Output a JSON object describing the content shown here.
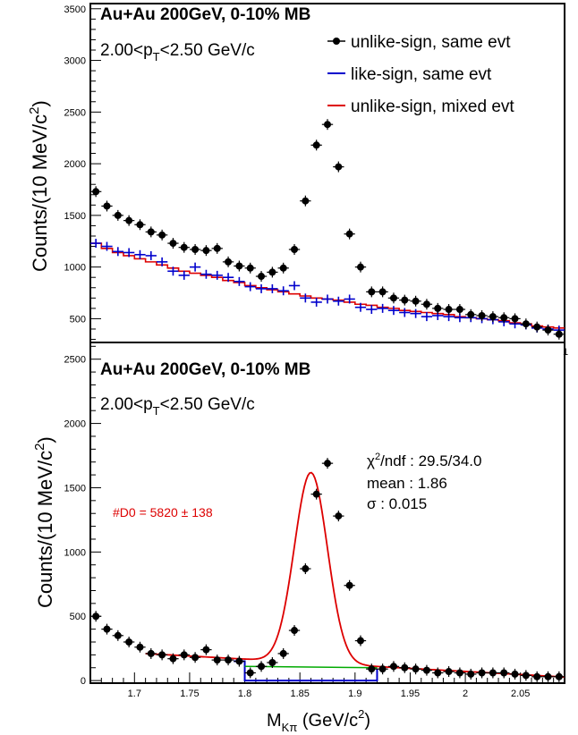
{
  "chart_data": [
    {
      "type": "scatter",
      "panel": "top",
      "title": "Au+Au 200GeV, 0-10% MB",
      "subtitle_main": "2.00<p",
      "subtitle_sub": "T",
      "subtitle_tail": "<2.50 GeV/c",
      "ylabel_main": "Counts/(10 MeV/c",
      "ylabel_sup": "2",
      "ylabel_tail": ")",
      "xlim": [
        1.66,
        2.09
      ],
      "ylim": [
        270,
        3550
      ],
      "yticks": [
        500,
        1000,
        1500,
        2000,
        2500,
        3000,
        3500
      ],
      "ytick_labels": [
        "500",
        "1000",
        "1500",
        "2000",
        "2500",
        "3000",
        "3500"
      ],
      "x_end_label": "1",
      "legend_position": "top-right",
      "legend": [
        {
          "label": "unlike-sign, same evt",
          "color": "#000000",
          "style": "marker"
        },
        {
          "label": "like-sign, same evt",
          "color": "#0000cc",
          "style": "line"
        },
        {
          "label": "unlike-sign, mixed evt",
          "color": "#dd0000",
          "style": "line"
        }
      ],
      "series": [
        {
          "name": "unlike-sign, same evt",
          "color": "#000000",
          "style": "points",
          "x": [
            1.665,
            1.675,
            1.685,
            1.695,
            1.705,
            1.715,
            1.725,
            1.735,
            1.745,
            1.755,
            1.765,
            1.775,
            1.785,
            1.795,
            1.805,
            1.815,
            1.825,
            1.835,
            1.845,
            1.855,
            1.865,
            1.875,
            1.885,
            1.895,
            1.905,
            1.915,
            1.925,
            1.935,
            1.945,
            1.955,
            1.965,
            1.975,
            1.985,
            1.995,
            2.005,
            2.015,
            2.025,
            2.035,
            2.045,
            2.055,
            2.065,
            2.075,
            2.085
          ],
          "y": [
            1730,
            1590,
            1500,
            1450,
            1410,
            1340,
            1310,
            1230,
            1190,
            1170,
            1160,
            1180,
            1050,
            1010,
            990,
            910,
            950,
            990,
            1170,
            1640,
            2180,
            2380,
            1970,
            1320,
            1000,
            760,
            760,
            700,
            680,
            670,
            640,
            600,
            590,
            590,
            540,
            530,
            520,
            510,
            500,
            450,
            420,
            390,
            350
          ]
        },
        {
          "name": "like-sign, same evt",
          "color": "#0000cc",
          "style": "crosses",
          "x": [
            1.665,
            1.675,
            1.685,
            1.695,
            1.705,
            1.715,
            1.725,
            1.735,
            1.745,
            1.755,
            1.765,
            1.775,
            1.785,
            1.795,
            1.805,
            1.815,
            1.825,
            1.835,
            1.845,
            1.855,
            1.865,
            1.875,
            1.885,
            1.895,
            1.905,
            1.915,
            1.925,
            1.935,
            1.945,
            1.955,
            1.965,
            1.975,
            1.985,
            1.995,
            2.005,
            2.015,
            2.025,
            2.035,
            2.045,
            2.055,
            2.065,
            2.075,
            2.085
          ],
          "y": [
            1230,
            1200,
            1150,
            1140,
            1120,
            1110,
            1050,
            960,
            920,
            1000,
            930,
            920,
            900,
            860,
            810,
            790,
            790,
            770,
            820,
            700,
            660,
            690,
            670,
            690,
            610,
            590,
            600,
            580,
            560,
            550,
            520,
            530,
            520,
            510,
            510,
            500,
            490,
            470,
            450,
            440,
            410,
            400,
            390
          ]
        },
        {
          "name": "unlike-sign, mixed evt",
          "color": "#dd0000",
          "style": "step",
          "x": [
            1.665,
            1.675,
            1.685,
            1.695,
            1.705,
            1.715,
            1.725,
            1.735,
            1.745,
            1.755,
            1.765,
            1.775,
            1.785,
            1.795,
            1.805,
            1.815,
            1.825,
            1.835,
            1.845,
            1.855,
            1.865,
            1.875,
            1.885,
            1.895,
            1.905,
            1.915,
            1.925,
            1.935,
            1.945,
            1.955,
            1.965,
            1.975,
            1.985,
            1.995,
            2.005,
            2.015,
            2.025,
            2.035,
            2.045,
            2.055,
            2.065,
            2.075,
            2.085
          ],
          "y": [
            1230,
            1180,
            1140,
            1110,
            1080,
            1050,
            1020,
            990,
            960,
            940,
            920,
            900,
            870,
            850,
            820,
            800,
            780,
            760,
            740,
            720,
            700,
            690,
            680,
            660,
            640,
            630,
            610,
            600,
            580,
            570,
            560,
            550,
            540,
            520,
            510,
            500,
            490,
            480,
            460,
            450,
            430,
            420,
            410
          ]
        }
      ]
    },
    {
      "type": "scatter",
      "panel": "bottom",
      "title": "Au+Au 200GeV, 0-10% MB",
      "subtitle_main": "2.00<p",
      "subtitle_sub": "T",
      "subtitle_tail": "<2.50 GeV/c",
      "ylabel_main": "Counts/(10 MeV/c",
      "ylabel_sup": "2",
      "ylabel_tail": ")",
      "xlabel_main": "M",
      "xlabel_sub": "Kπ",
      "xlabel_tail": " (GeV/c",
      "xlabel_sup": "2",
      "xlabel_close": ")",
      "xlim": [
        1.66,
        2.09
      ],
      "ylim": [
        -20,
        2630
      ],
      "xticks": [
        1.7,
        1.75,
        1.8,
        1.85,
        1.9,
        1.95,
        2.0,
        2.05
      ],
      "xtick_labels": [
        "1.7",
        "1.75",
        "1.8",
        "1.85",
        "1.9",
        "1.95",
        "2",
        "2.05"
      ],
      "yticks": [
        0,
        500,
        1000,
        1500,
        2000,
        2500
      ],
      "ytick_labels": [
        "0",
        "500",
        "1000",
        "1500",
        "2000",
        "2500"
      ],
      "fit_stats": [
        {
          "label": "χ",
          "sup": "2",
          "rest": "/ndf : 29.5/34.0"
        },
        {
          "label": "mean",
          "sup": "",
          "rest": "  : 1.86"
        },
        {
          "label": "σ",
          "sup": "",
          "rest": "        : 0.015"
        }
      ],
      "yield_annotation": "#D0 = 5820 ± 138",
      "yield_color": "#dd0000",
      "points": {
        "color": "#000000",
        "x": [
          1.665,
          1.675,
          1.685,
          1.695,
          1.705,
          1.715,
          1.725,
          1.735,
          1.745,
          1.755,
          1.765,
          1.775,
          1.785,
          1.795,
          1.805,
          1.815,
          1.825,
          1.835,
          1.845,
          1.855,
          1.865,
          1.875,
          1.885,
          1.895,
          1.905,
          1.915,
          1.925,
          1.935,
          1.945,
          1.955,
          1.965,
          1.975,
          1.985,
          1.995,
          2.005,
          2.015,
          2.025,
          2.035,
          2.045,
          2.055,
          2.065,
          2.075,
          2.085
        ],
        "y": [
          500,
          400,
          350,
          300,
          260,
          210,
          200,
          170,
          200,
          180,
          240,
          160,
          160,
          150,
          60,
          110,
          140,
          210,
          390,
          870,
          1450,
          1690,
          1280,
          740,
          310,
          90,
          90,
          110,
          100,
          90,
          80,
          60,
          70,
          60,
          50,
          60,
          60,
          60,
          50,
          40,
          30,
          30,
          30
        ]
      },
      "fit_curve": {
        "color": "#dd0000",
        "x_range": [
          1.71,
          2.09
        ],
        "background": {
          "y_at_1_71": 210,
          "slope_per_unit": -480
        },
        "gaussian": {
          "amplitude": 1480,
          "mean": 1.86,
          "sigma": 0.015
        }
      },
      "residual_background": {
        "color": "#00aa00",
        "x": [
          1.8,
          1.92
        ],
        "y": [
          110,
          100
        ]
      },
      "side_band_step": {
        "color": "#0000cc",
        "x": [
          1.79,
          1.8,
          1.8,
          1.92,
          1.92
        ],
        "y": [
          150,
          150,
          0,
          0,
          90
        ]
      }
    }
  ]
}
